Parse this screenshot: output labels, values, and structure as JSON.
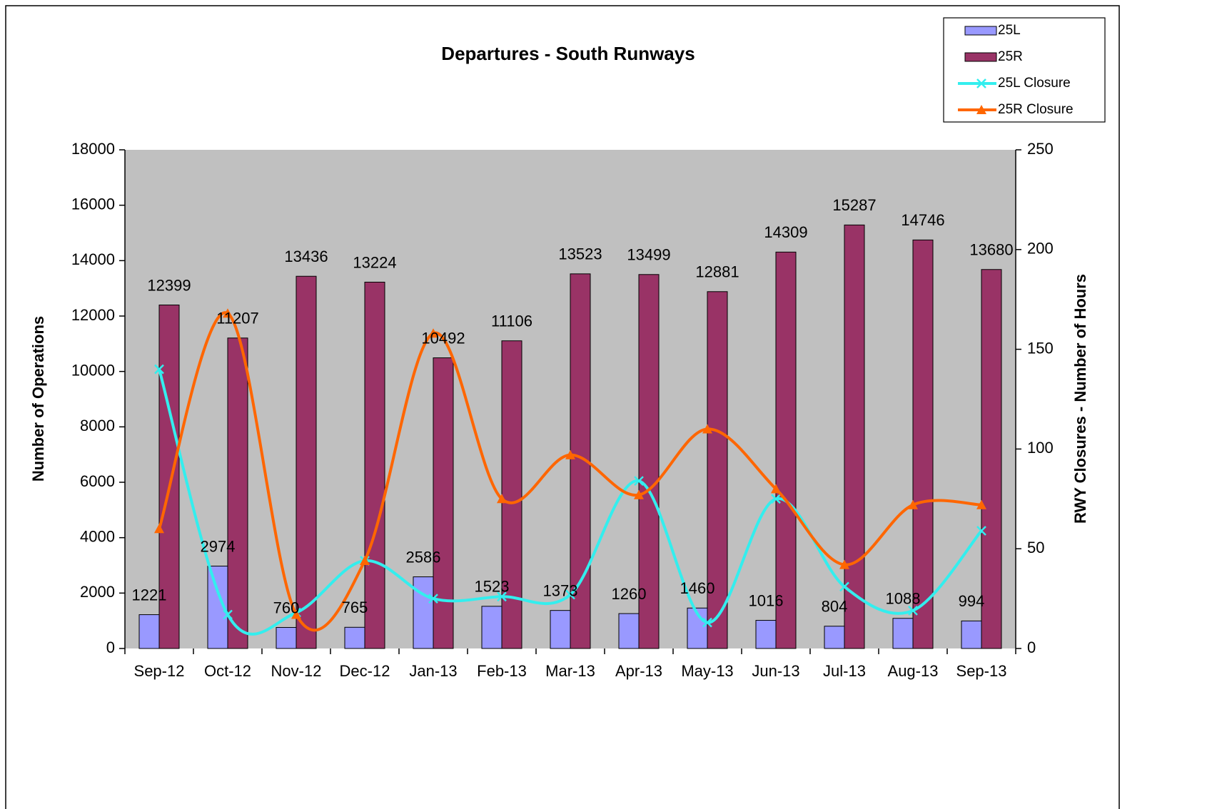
{
  "chart_data": {
    "type": "bar",
    "title": "Departures - South Runways",
    "y_label": "Number of Operations",
    "y2_label": "RWY Closures - Number of Hours",
    "categories": [
      "Sep-12",
      "Oct-12",
      "Nov-12",
      "Dec-12",
      "Jan-13",
      "Feb-13",
      "Mar-13",
      "Apr-13",
      "May-13",
      "Jun-13",
      "Jul-13",
      "Aug-13",
      "Sep-13"
    ],
    "series": [
      {
        "name": "25L",
        "type": "bar",
        "color": "#9999ff",
        "values": [
          1221,
          2974,
          760,
          765,
          2586,
          1523,
          1373,
          1260,
          1460,
          1016,
          804,
          1088,
          994
        ]
      },
      {
        "name": "25R",
        "type": "bar",
        "color": "#993366",
        "values": [
          12399,
          11207,
          13436,
          13224,
          10492,
          11106,
          13523,
          13499,
          12881,
          14309,
          15287,
          14746,
          13680
        ]
      },
      {
        "name": "25L Closure",
        "type": "line",
        "marker": "x",
        "axis": "y2",
        "color": "#33eeee",
        "values": [
          140,
          17,
          18,
          44,
          25,
          26,
          27,
          84,
          13,
          75,
          31,
          19,
          59
        ]
      },
      {
        "name": "25R Closure",
        "type": "line",
        "marker": "triangle",
        "axis": "y2",
        "color": "#ff6600",
        "values": [
          60,
          168,
          17,
          44,
          158,
          75,
          97,
          77,
          110,
          80,
          42,
          72,
          72
        ]
      }
    ],
    "ylim": [
      0,
      18000
    ],
    "yticks": [
      0,
      2000,
      4000,
      6000,
      8000,
      10000,
      12000,
      14000,
      16000,
      18000
    ],
    "y2lim": [
      0,
      250
    ],
    "y2ticks": [
      0,
      50,
      100,
      150,
      200,
      250
    ],
    "grid": false,
    "legend": "top-right",
    "plot_background": "#c0c0c0"
  }
}
